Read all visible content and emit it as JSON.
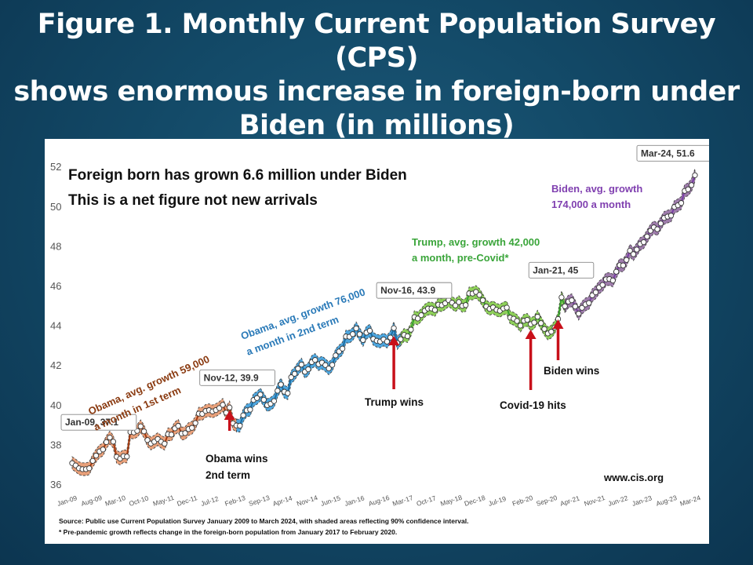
{
  "slide": {
    "title_lines": [
      "Figure 1. Monthly Current Population Survey (CPS)",
      "shows enormous increase in foreign-born  under",
      "Biden (in millions)"
    ]
  },
  "chart_data": {
    "type": "line",
    "title": "Foreign born has grown 6.6 million under Biden",
    "subtitle": "This is a net figure not new arrivals",
    "xlabel": "",
    "ylabel": "",
    "ylim": [
      36,
      52.4
    ],
    "y_ticks": [
      "36",
      "38",
      "40",
      "42",
      "44",
      "46",
      "48",
      "50",
      "52"
    ],
    "x_ticks": [
      "Jan-09",
      "Aug-09",
      "Mar-10",
      "Oct-10",
      "May-11",
      "Dec-11",
      "Jul-12",
      "Feb-13",
      "Sep-13",
      "Apr-14",
      "Nov-14",
      "Jun-15",
      "Jan-16",
      "Aug-16",
      "Mar-17",
      "Oct-17",
      "May-18",
      "Dec-18",
      "Jul-19",
      "Feb-20",
      "Sep-20",
      "Apr-21",
      "Nov-21",
      "Jun-22",
      "Jan-23",
      "Aug-23",
      "Mar-24"
    ],
    "confidence_band": "90% confidence interval",
    "anchors": [
      [
        0,
        37.1
      ],
      [
        1,
        36.7
      ],
      [
        2,
        36.9
      ],
      [
        4,
        36.7
      ],
      [
        6,
        37.2
      ],
      [
        8,
        37.5
      ],
      [
        10,
        38.0
      ],
      [
        12,
        38.3
      ],
      [
        13,
        37.7
      ],
      [
        14,
        37.2
      ],
      [
        15,
        37.5
      ],
      [
        16,
        37.3
      ],
      [
        17,
        38.4
      ],
      [
        18,
        38.6
      ],
      [
        20,
        38.9
      ],
      [
        22,
        38.6
      ],
      [
        24,
        38.1
      ],
      [
        26,
        38.5
      ],
      [
        27,
        37.9
      ],
      [
        28,
        38.3
      ],
      [
        30,
        38.8
      ],
      [
        32,
        39.0
      ],
      [
        34,
        38.5
      ],
      [
        36,
        39.0
      ],
      [
        38,
        39.4
      ],
      [
        40,
        39.8
      ],
      [
        42,
        39.7
      ],
      [
        44,
        39.9
      ],
      [
        46,
        39.6
      ],
      [
        47,
        39.2
      ],
      [
        48,
        38.8
      ],
      [
        50,
        39.3
      ],
      [
        52,
        39.8
      ],
      [
        54,
        40.2
      ],
      [
        56,
        40.6
      ],
      [
        58,
        40.0
      ],
      [
        60,
        40.5
      ],
      [
        62,
        41.0
      ],
      [
        64,
        40.6
      ],
      [
        66,
        41.7
      ],
      [
        68,
        42.0
      ],
      [
        70,
        41.8
      ],
      [
        72,
        42.2
      ],
      [
        74,
        42.0
      ],
      [
        76,
        41.8
      ],
      [
        78,
        42.4
      ],
      [
        80,
        42.9
      ],
      [
        82,
        43.4
      ],
      [
        84,
        43.8
      ],
      [
        86,
        43.5
      ],
      [
        88,
        43.9
      ],
      [
        90,
        43.3
      ],
      [
        92,
        43.2
      ],
      [
        94,
        43.4
      ],
      [
        96,
        43.5
      ],
      [
        98,
        43.3
      ],
      [
        100,
        43.6
      ],
      [
        102,
        44.3
      ],
      [
        104,
        44.6
      ],
      [
        106,
        45.0
      ],
      [
        108,
        44.7
      ],
      [
        110,
        45.1
      ],
      [
        112,
        45.1
      ],
      [
        114,
        45.3
      ],
      [
        116,
        45.0
      ],
      [
        118,
        45.5
      ],
      [
        120,
        45.8
      ],
      [
        122,
        45.3
      ],
      [
        124,
        45.1
      ],
      [
        126,
        44.8
      ],
      [
        128,
        44.9
      ],
      [
        130,
        44.6
      ],
      [
        132,
        44.2
      ],
      [
        134,
        44.3
      ],
      [
        136,
        44.0
      ],
      [
        138,
        44.3
      ],
      [
        140,
        43.9
      ],
      [
        142,
        43.6
      ],
      [
        144,
        44.1
      ],
      [
        145,
        45.0
      ],
      [
        146,
        45.5
      ],
      [
        148,
        45.2
      ],
      [
        150,
        44.9
      ],
      [
        152,
        45.0
      ],
      [
        154,
        45.4
      ],
      [
        156,
        45.8
      ],
      [
        158,
        46.3
      ],
      [
        160,
        46.5
      ],
      [
        162,
        46.8
      ],
      [
        164,
        47.2
      ],
      [
        166,
        47.6
      ],
      [
        168,
        47.9
      ],
      [
        170,
        48.4
      ],
      [
        172,
        48.7
      ],
      [
        174,
        48.9
      ],
      [
        176,
        49.3
      ],
      [
        178,
        49.8
      ],
      [
        180,
        50.1
      ],
      [
        182,
        50.6
      ],
      [
        184,
        51.2
      ],
      [
        185,
        51.6
      ]
    ],
    "point_labels": [
      {
        "label": "Jan-09,  37.1",
        "x": "Jan-09",
        "y": 37.1
      },
      {
        "label": "Nov-12,  39.9",
        "x": "Nov-12",
        "y": 39.9
      },
      {
        "label": "Nov-16,  43.9",
        "x": "Nov-16",
        "y": 43.9
      },
      {
        "label": "Jan-21,  45",
        "x": "Jan-21",
        "y": 45.0
      },
      {
        "label": "Mar-24,  51.6",
        "x": "Mar-24",
        "y": 51.6
      }
    ],
    "eras": [
      {
        "president": "Obama 1st term",
        "color": "#e8a07a",
        "line": "#a33a10",
        "label_lines": [
          "Obama, avg. growth 59,000",
          "a month in 1st term"
        ],
        "label_color": "#8a3a10"
      },
      {
        "president": "Obama 2nd term",
        "color": "#4ea6de",
        "line": "#1c6ea4",
        "label_lines": [
          "Obama, avg. growth 76,000",
          "a month in 2nd term"
        ],
        "label_color": "#2a7ab8"
      },
      {
        "president": "Trump",
        "color": "#8ed05a",
        "line": "#3aa030",
        "label_lines": [
          "Trump, avg. growth 42,000",
          "a month, pre-Covid*"
        ],
        "label_color": "#3aa53a"
      },
      {
        "president": "Biden",
        "color": "#9e7cab",
        "line": "#7a3fa6",
        "label_lines": [
          "Biden, avg. growth",
          "174,000 a month"
        ],
        "label_color": "#8040b0"
      }
    ],
    "events": [
      {
        "text_lines": [
          "Obama wins",
          "2nd term"
        ],
        "at": "Nov-12"
      },
      {
        "text_lines": [
          "Trump wins"
        ],
        "at": "Nov-16"
      },
      {
        "text_lines": [
          "Covid-19 hits"
        ],
        "at": "Mar-20"
      },
      {
        "text_lines": [
          "Biden wins"
        ],
        "at": "Nov-20"
      }
    ],
    "source_lines": [
      "Source: Public use Current Population Survey January 2009 to March 2024, with shaded areas reflecting 90% confidence interval.",
      "* Pre-pandemic growth reflects change in the foreign-born population from January 2017 to February 2020."
    ],
    "website": "www.cis.org"
  }
}
